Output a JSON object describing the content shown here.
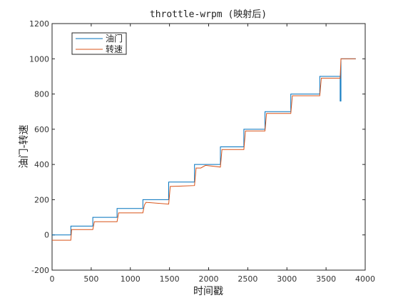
{
  "chart_data": {
    "type": "line",
    "title": "throttle-wrpm (映射后)",
    "xlabel": "时间戳",
    "ylabel": "油门-转速",
    "xlim": [
      0,
      4000
    ],
    "ylim": [
      -200,
      1200
    ],
    "xticks": [
      0,
      500,
      1000,
      1500,
      2000,
      2500,
      3000,
      3500,
      4000
    ],
    "yticks": [
      -200,
      0,
      200,
      400,
      600,
      800,
      1000,
      1200
    ],
    "grid": false,
    "legend_position": "top-left",
    "series": [
      {
        "name": "油门",
        "color": "#0072BD",
        "points": [
          [
            0,
            0
          ],
          [
            240,
            0
          ],
          [
            240,
            50
          ],
          [
            520,
            50
          ],
          [
            520,
            100
          ],
          [
            830,
            100
          ],
          [
            830,
            150
          ],
          [
            1160,
            150
          ],
          [
            1160,
            200
          ],
          [
            1490,
            200
          ],
          [
            1490,
            300
          ],
          [
            1820,
            300
          ],
          [
            1820,
            400
          ],
          [
            2150,
            400
          ],
          [
            2150,
            500
          ],
          [
            2450,
            500
          ],
          [
            2450,
            600
          ],
          [
            2720,
            600
          ],
          [
            2720,
            700
          ],
          [
            3050,
            700
          ],
          [
            3050,
            800
          ],
          [
            3420,
            800
          ],
          [
            3420,
            900
          ],
          [
            3680,
            900
          ],
          [
            3680,
            760
          ],
          [
            3690,
            760
          ],
          [
            3690,
            1000
          ],
          [
            3880,
            1000
          ]
        ]
      },
      {
        "name": "转速",
        "color": "#D95319",
        "points": [
          [
            0,
            -30
          ],
          [
            240,
            -30
          ],
          [
            250,
            30
          ],
          [
            520,
            30
          ],
          [
            540,
            75
          ],
          [
            830,
            75
          ],
          [
            850,
            125
          ],
          [
            1160,
            125
          ],
          [
            1180,
            170
          ],
          [
            1200,
            185
          ],
          [
            1490,
            175
          ],
          [
            1510,
            275
          ],
          [
            1820,
            280
          ],
          [
            1840,
            380
          ],
          [
            1900,
            380
          ],
          [
            1960,
            395
          ],
          [
            2150,
            385
          ],
          [
            2170,
            485
          ],
          [
            2450,
            485
          ],
          [
            2470,
            590
          ],
          [
            2720,
            590
          ],
          [
            2740,
            690
          ],
          [
            3050,
            690
          ],
          [
            3070,
            790
          ],
          [
            3420,
            790
          ],
          [
            3440,
            890
          ],
          [
            3680,
            890
          ],
          [
            3690,
            1000
          ],
          [
            3880,
            1000
          ]
        ]
      }
    ]
  }
}
